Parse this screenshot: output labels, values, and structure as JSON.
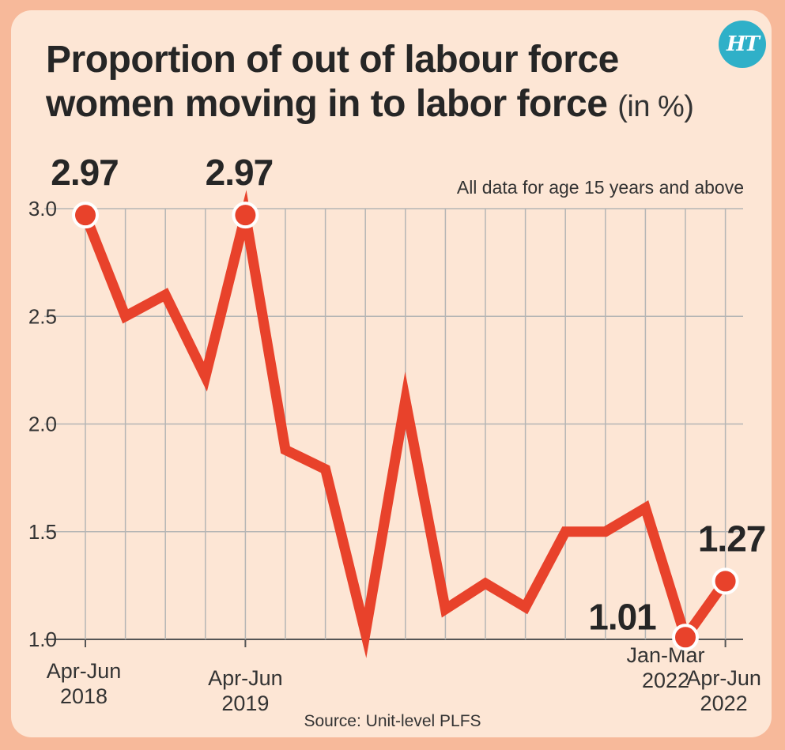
{
  "header": {
    "title_line1": "Proportion of out of labour force",
    "title_line2": "women moving in to labor force",
    "title_unit": "(in %)",
    "logo": "HT",
    "note": "All data for age 15 years and above",
    "source": "Source: Unit-level PLFS"
  },
  "colors": {
    "line": "#e8422b",
    "background": "#fde6d5",
    "border": "#f7b99a",
    "grid": "#b5b5b5",
    "logo": "#2fb0c8"
  },
  "chart_data": {
    "type": "line",
    "title": "Proportion of out of labour force women moving in to labor force (in %)",
    "subtitle": "All data for age 15 years and above",
    "xlabel": "",
    "ylabel": "",
    "ylim": [
      1.0,
      3.0
    ],
    "yticks": [
      "3.0",
      "2.5",
      "2.0",
      "1.5",
      "1.0"
    ],
    "grid": true,
    "legend": "none",
    "x_tick_labels": [
      {
        "index": 0,
        "lines": [
          "Apr-Jun",
          "2018"
        ]
      },
      {
        "index": 4,
        "lines": [
          "Apr-Jun",
          "2019"
        ]
      },
      {
        "index": 15,
        "lines": [
          "Jan-Mar",
          "2022"
        ]
      },
      {
        "index": 16,
        "lines": [
          "Apr-Jun",
          "2022"
        ]
      }
    ],
    "series": [
      {
        "values": [
          2.97,
          2.5,
          2.6,
          2.22,
          2.97,
          1.88,
          1.79,
          1.03,
          2.11,
          1.14,
          1.26,
          1.15,
          1.5,
          1.5,
          1.61,
          1.01,
          1.27
        ]
      }
    ],
    "data_labels": [
      {
        "index": 0,
        "text": "2.97"
      },
      {
        "index": 4,
        "text": "2.97"
      },
      {
        "index": 16,
        "text": "1.27"
      },
      {
        "index": 15,
        "text": "1.01"
      }
    ]
  }
}
